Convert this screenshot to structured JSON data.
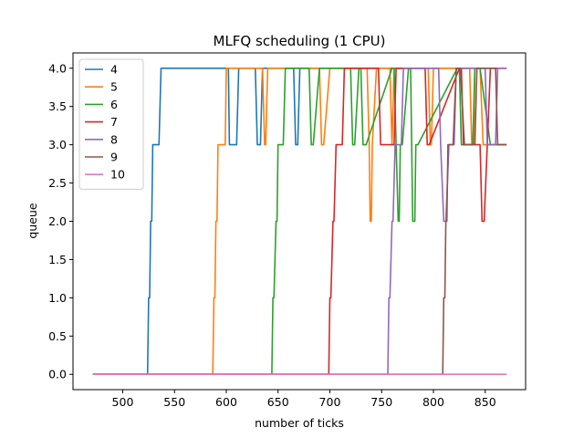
{
  "chart_data": {
    "type": "line",
    "title": "MLFQ scheduling (1 CPU)",
    "xlabel": "number of ticks",
    "ylabel": "queue",
    "xlim": [
      452,
      889
    ],
    "ylim": [
      -0.2,
      4.2
    ],
    "xticks": [
      500,
      550,
      600,
      650,
      700,
      750,
      800,
      850
    ],
    "yticks": [
      0.0,
      0.5,
      1.0,
      1.5,
      2.0,
      2.5,
      3.0,
      3.5,
      4.0
    ],
    "xtick_labels": [
      "500",
      "550",
      "600",
      "650",
      "700",
      "750",
      "800",
      "850"
    ],
    "ytick_labels": [
      "0.0",
      "0.5",
      "1.0",
      "1.5",
      "2.0",
      "2.5",
      "3.0",
      "3.5",
      "4.0"
    ],
    "grid": false,
    "legend_position": "upper-left",
    "series": [
      {
        "name": "4",
        "color": "#1f77b4",
        "x": [
          472,
          524,
          525,
          526,
          527,
          528,
          529,
          530,
          531,
          535,
          537,
          540,
          600,
          602,
          603,
          605,
          608,
          610,
          612,
          628,
          630,
          633,
          635,
          638,
          640,
          665,
          667,
          669,
          671,
          860
        ],
        "y": [
          0,
          0,
          1,
          1,
          2,
          2,
          3,
          3,
          3,
          3,
          4,
          4,
          4,
          4,
          3,
          3,
          3,
          3,
          4,
          4,
          3,
          3,
          4,
          4,
          4,
          4,
          3,
          3,
          4,
          4
        ]
      },
      {
        "name": "5",
        "color": "#ff7f0e",
        "x": [
          472,
          587,
          588,
          589,
          590,
          591,
          592,
          593,
          594,
          599,
          600,
          602,
          603,
          635,
          637,
          638,
          640,
          690,
          692,
          694,
          700,
          736,
          738,
          739,
          740,
          741,
          745,
          758,
          760,
          762,
          795,
          797,
          798,
          800,
          835,
          837,
          839,
          840,
          845,
          848,
          870
        ],
        "y": [
          0,
          0,
          1,
          1,
          2,
          2,
          3,
          3,
          3,
          3,
          4,
          4,
          4,
          4,
          3,
          3,
          4,
          4,
          3,
          3,
          4,
          4,
          3,
          2,
          2,
          3,
          4,
          4,
          3,
          4,
          4,
          3,
          3,
          4,
          4,
          3,
          3,
          4,
          4,
          3,
          3
        ]
      },
      {
        "name": "6",
        "color": "#2ca02c",
        "x": [
          472,
          644,
          645,
          646,
          648,
          649,
          650,
          651,
          652,
          655,
          657,
          658,
          660,
          680,
          682,
          684,
          690,
          720,
          722,
          724,
          728,
          730,
          732,
          735,
          760,
          762,
          764,
          766,
          767,
          768,
          770,
          776,
          778,
          780,
          782,
          783,
          785,
          823,
          825,
          827,
          838,
          840,
          845,
          855,
          857,
          870
        ],
        "y": [
          0,
          0,
          1,
          1,
          2,
          2,
          3,
          3,
          3,
          3,
          4,
          4,
          4,
          4,
          3,
          3,
          4,
          4,
          3,
          3,
          4,
          4,
          3,
          3,
          4,
          4,
          3,
          2,
          2,
          3,
          3,
          4,
          4,
          2,
          2,
          3,
          3,
          4,
          4,
          3,
          3,
          4,
          4,
          3,
          3,
          3
        ]
      },
      {
        "name": "7",
        "color": "#d62728",
        "x": [
          472,
          699,
          700,
          701,
          703,
          704,
          706,
          707,
          710,
          712,
          714,
          716,
          745,
          747,
          749,
          751,
          760,
          762,
          764,
          766,
          790,
          792,
          794,
          796,
          825,
          827,
          829,
          832,
          845,
          847,
          849,
          852,
          855,
          857,
          870
        ],
        "y": [
          0,
          0,
          1,
          1,
          2,
          2,
          3,
          3,
          3,
          3,
          4,
          4,
          4,
          4,
          3,
          3,
          3,
          3,
          4,
          4,
          4,
          4,
          3,
          3,
          4,
          4,
          3,
          3,
          3,
          2,
          2,
          3,
          4,
          4,
          4
        ]
      },
      {
        "name": "8",
        "color": "#9467bd",
        "x": [
          472,
          756,
          757,
          758,
          760,
          761,
          763,
          764,
          767,
          769,
          771,
          773,
          805,
          807,
          810,
          812,
          815,
          820,
          822,
          824,
          826,
          830,
          850,
          852,
          855,
          860,
          862,
          870
        ],
        "y": [
          0,
          0,
          1,
          1,
          2,
          2,
          3,
          3,
          3,
          3,
          4,
          4,
          4,
          3,
          2,
          2,
          3,
          3,
          4,
          4,
          4,
          4,
          4,
          3,
          3,
          3,
          4,
          4
        ]
      },
      {
        "name": "9",
        "color": "#8c564b",
        "x": [
          472,
          809,
          810,
          811,
          812,
          813,
          814,
          815,
          817,
          819,
          822,
          824,
          826,
          830,
          832,
          840,
          842,
          844,
          860,
          862,
          870
        ],
        "y": [
          0,
          0,
          1,
          1,
          2,
          2,
          3,
          3,
          3,
          3,
          4,
          4,
          4,
          3,
          3,
          3,
          4,
          4,
          4,
          3,
          3
        ]
      },
      {
        "name": "10",
        "color": "#e377c2",
        "x": [
          472,
          870
        ],
        "y": [
          0,
          0
        ]
      }
    ]
  }
}
